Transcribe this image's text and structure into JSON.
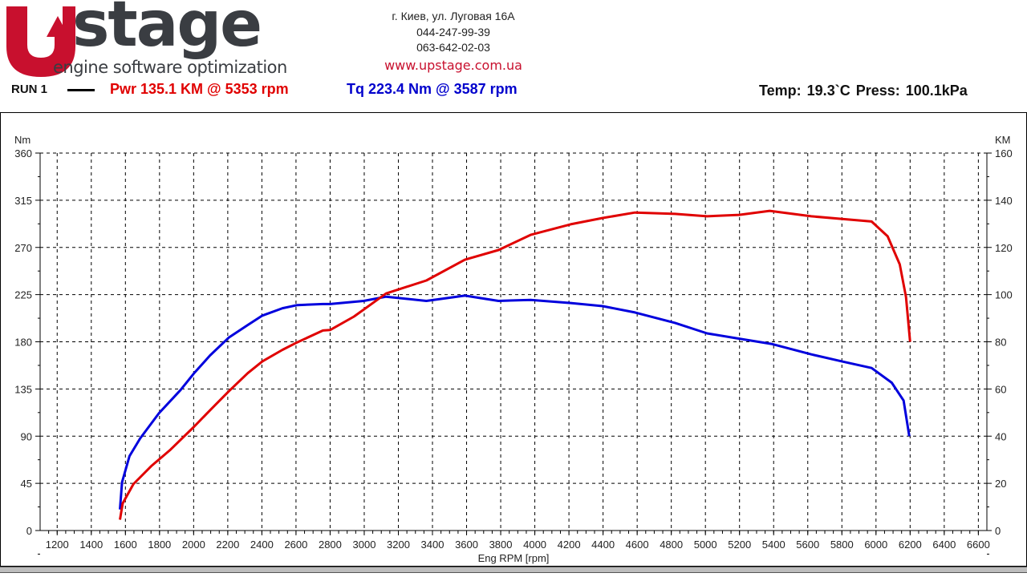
{
  "header": {
    "logo_main": "stage",
    "logo_tagline": "engine software optimization",
    "address": "г. Киев, ул. Луговая 16А",
    "phone1": "044-247-99-39",
    "phone2": "063-642-02-03",
    "website": "www.upstage.com.ua",
    "brand_red": "#c8102e"
  },
  "summary": {
    "run_label": "RUN 1",
    "power": "Pwr  135.1 KM @ 5353 rpm",
    "torque": "Tq 223.4 Nm @ 3587 rpm",
    "environment": "Temp: 19.3`C   Press: 100.1kPa"
  },
  "chart_data": {
    "type": "line",
    "xlabel": "Eng RPM [rpm]",
    "ylabel_left": "Nm",
    "ylabel_right": "KM",
    "xlim": [
      1100,
      6650
    ],
    "ylim_left": [
      0,
      360
    ],
    "ylim_right": [
      0,
      160
    ],
    "xticks": [
      1200,
      1400,
      1600,
      1800,
      2000,
      2200,
      2400,
      2600,
      2800,
      3000,
      3200,
      3400,
      3600,
      3800,
      4000,
      4200,
      4400,
      4600,
      4800,
      5000,
      5200,
      5400,
      5600,
      5800,
      6000,
      6200,
      6400,
      6600
    ],
    "yticks_left": [
      0,
      45,
      90,
      135,
      180,
      225,
      270,
      315,
      360
    ],
    "yticks_right": [
      0,
      20,
      40,
      60,
      80,
      100,
      120,
      140,
      160
    ],
    "grid": true,
    "series": [
      {
        "axis": "left",
        "color": "#0000dd",
        "x": [
          1568,
          1580,
          1624,
          1687,
          1797,
          1923,
          2002,
          2096,
          2206,
          2317,
          2403,
          2521,
          2608,
          2758,
          2800,
          2997,
          3128,
          3364,
          3590,
          3787,
          3975,
          4210,
          4398,
          4587,
          4822,
          5010,
          5198,
          5386,
          5621,
          5810,
          5974,
          6092,
          6162,
          6195
        ],
        "y": [
          20,
          46,
          71,
          88,
          112,
          134,
          150,
          167,
          184,
          196,
          205,
          212,
          215,
          216,
          216,
          219,
          223,
          219,
          224,
          219,
          220,
          217,
          214,
          208,
          198,
          188,
          183,
          178,
          168,
          161,
          155,
          141,
          124,
          90
        ]
      },
      {
        "axis": "right",
        "color": "#e00000",
        "x": [
          1568,
          1584,
          1647,
          1750,
          1860,
          2002,
          2096,
          2206,
          2317,
          2403,
          2521,
          2608,
          2758,
          2800,
          2940,
          3128,
          3364,
          3590,
          3787,
          3975,
          4210,
          4398,
          4587,
          4822,
          5010,
          5198,
          5377,
          5621,
          5810,
          5974,
          6068,
          6139,
          6176,
          6200
        ],
        "y": [
          4.6,
          11.5,
          19.7,
          27.2,
          34,
          44,
          51,
          59,
          66.7,
          71.7,
          76.6,
          79.8,
          84.8,
          85,
          90.7,
          100.5,
          106,
          114.8,
          118.9,
          125.3,
          129.8,
          132.5,
          134.8,
          134.2,
          133.2,
          133.8,
          135.5,
          133.2,
          132,
          131,
          124.7,
          112.8,
          99,
          80
        ]
      }
    ]
  }
}
